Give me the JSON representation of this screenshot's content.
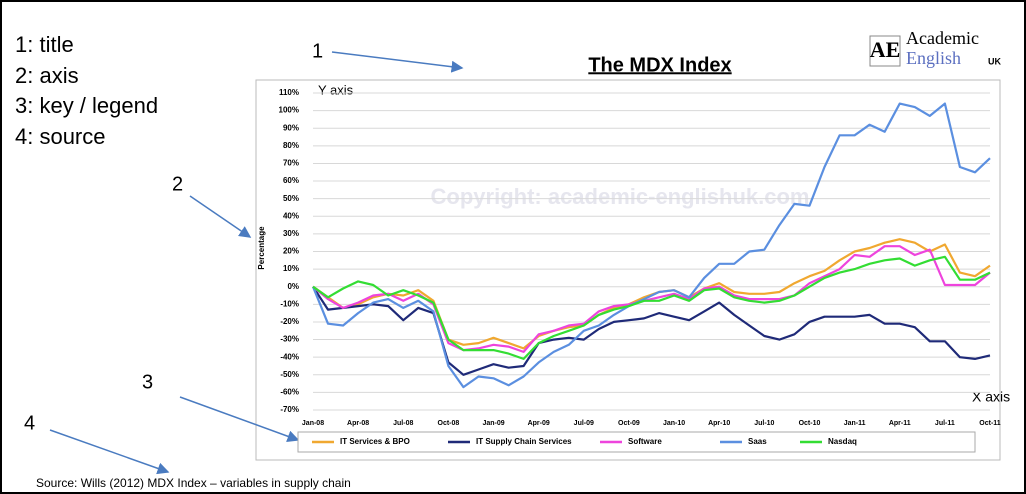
{
  "chart_data": {
    "type": "line",
    "title": "The MDX Index",
    "ylabel": "Percentage",
    "y_axis_note": "Y axis",
    "x_axis_note": "X axis",
    "watermark": "Copyright: academic-englishuk.com",
    "source": "Source: Wills (2012) MDX Index – variables in supply chain",
    "categories": [
      "Jan-08",
      null,
      null,
      "Apr-08",
      null,
      null,
      "Jul-08",
      null,
      null,
      "Oct-08",
      null,
      null,
      "Jan-09",
      null,
      null,
      "Apr-09",
      null,
      null,
      "Jul-09",
      null,
      null,
      "Oct-09",
      null,
      null,
      "Jan-10",
      null,
      null,
      "Apr-10",
      null,
      null,
      "Jul-10",
      null,
      null,
      "Oct-10",
      null,
      null,
      "Jan-11",
      null,
      null,
      "Apr-11",
      null,
      null,
      "Jul-11",
      null,
      null,
      "Oct-11"
    ],
    "series": [
      {
        "name": "IT Services & BPO",
        "color": "#f0a830",
        "values": [
          0,
          -6,
          -12,
          -10,
          -6,
          -4,
          -5,
          -2,
          -8,
          -30,
          -33,
          -32,
          -29,
          -32,
          -35,
          -28,
          -25,
          -23,
          -22,
          -16,
          -12,
          -10,
          -6,
          -3,
          -2,
          -6,
          -1,
          2,
          -3,
          -4,
          -4,
          -3,
          2,
          6,
          9,
          15,
          20,
          22,
          25,
          27,
          25,
          20,
          24,
          8,
          6,
          12
        ]
      },
      {
        "name": "IT Supply Chain Services",
        "color": "#1f2a78",
        "values": [
          0,
          -13,
          -12,
          -11,
          -10,
          -11,
          -19,
          -12,
          -15,
          -43,
          -50,
          -47,
          -44,
          -46,
          -45,
          -32,
          -30,
          -29,
          -30,
          -24,
          -20,
          -19,
          -18,
          -15,
          -17,
          -19,
          -14,
          -9,
          -16,
          -22,
          -28,
          -30,
          -27,
          -20,
          -17,
          -17,
          -17,
          -16,
          -21,
          -21,
          -23,
          -31,
          -31,
          -40,
          -41,
          -39
        ]
      },
      {
        "name": "Software",
        "color": "#ee44dd",
        "values": [
          0,
          -7,
          -12,
          -9,
          -5,
          -4,
          -8,
          -4,
          -10,
          -32,
          -36,
          -35,
          -33,
          -34,
          -37,
          -27,
          -25,
          -22,
          -21,
          -14,
          -11,
          -10,
          -8,
          -6,
          -4,
          -7,
          -1,
          0,
          -5,
          -7,
          -7,
          -7,
          -5,
          2,
          6,
          10,
          18,
          17,
          23,
          23,
          18,
          21,
          1,
          1,
          1,
          8
        ]
      },
      {
        "name": "Saas",
        "color": "#5b8fe0",
        "values": [
          0,
          -21,
          -22,
          -15,
          -9,
          -7,
          -12,
          -8,
          -14,
          -45,
          -57,
          -51,
          -52,
          -56,
          -51,
          -43,
          -37,
          -33,
          -25,
          -22,
          -16,
          -11,
          -7,
          -3,
          -2,
          -6,
          5,
          13,
          13,
          20,
          21,
          35,
          47,
          46,
          68,
          86,
          86,
          92,
          88,
          104,
          102,
          97,
          104,
          68,
          65,
          73
        ]
      },
      {
        "name": "Nasdaq",
        "color": "#33dd33",
        "values": [
          0,
          -6,
          -1,
          3,
          1,
          -5,
          -2,
          -5,
          -9,
          -30,
          -36,
          -36,
          -36,
          -38,
          -41,
          -32,
          -28,
          -25,
          -22,
          -16,
          -13,
          -11,
          -8,
          -8,
          -5,
          -8,
          -2,
          -1,
          -6,
          -8,
          -9,
          -8,
          -5,
          0,
          5,
          8,
          10,
          13,
          15,
          16,
          12,
          15,
          17,
          4,
          4,
          8
        ]
      }
    ],
    "ylim": [
      -70,
      110
    ],
    "yticks": [
      {
        "value": -70,
        "label": "-70%"
      },
      {
        "value": -60,
        "label": "-60%"
      },
      {
        "value": -50,
        "label": "-50%"
      },
      {
        "value": -40,
        "label": "-40%"
      },
      {
        "value": -30,
        "label": "-30%"
      },
      {
        "value": -20,
        "label": "-20%"
      },
      {
        "value": -10,
        "label": "-10%"
      },
      {
        "value": 0,
        "label": "0%"
      },
      {
        "value": 10,
        "label": "10%"
      },
      {
        "value": 20,
        "label": "20%"
      },
      {
        "value": 30,
        "label": "30%"
      },
      {
        "value": 40,
        "label": "40%"
      },
      {
        "value": 50,
        "label": "50%"
      },
      {
        "value": 60,
        "label": "60%"
      },
      {
        "value": 70,
        "label": "70%"
      },
      {
        "value": 80,
        "label": "80%"
      },
      {
        "value": 90,
        "label": "90%"
      },
      {
        "value": 100,
        "label": "100%"
      },
      {
        "value": 110,
        "label": "110%"
      }
    ],
    "grid": true,
    "legend": "bottom"
  },
  "annotations": {
    "key": [
      "1: title",
      "2: axis",
      "3: key / legend",
      "4: source"
    ],
    "markers": [
      "1",
      "2",
      "3",
      "4"
    ]
  },
  "logo": {
    "mark": "AE",
    "line1": "Academic",
    "line2": "English",
    "suffix": "UK"
  }
}
